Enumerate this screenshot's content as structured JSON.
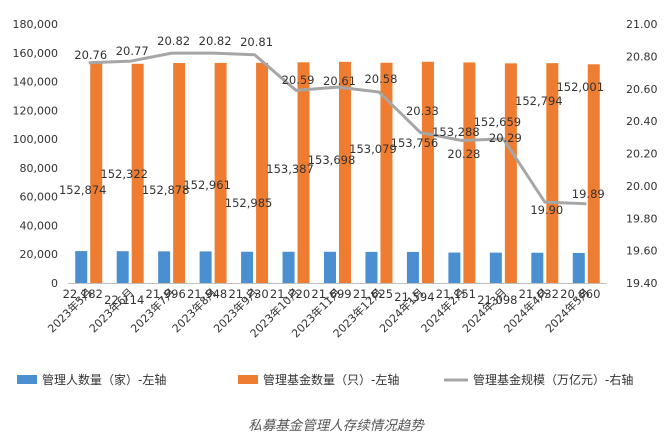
{
  "colors": {
    "managers": "#4a8fd0",
    "funds": "#ee7d31",
    "scale": "#a6a6a6"
  },
  "caption": "私募基金管理人存续情况趋势",
  "chart_data": {
    "type": "bar",
    "title": "",
    "categories": [
      "2023年5月",
      "2023年6月",
      "2023年7月",
      "2023年8月",
      "2023年9月",
      "2023年10月",
      "2023年11月",
      "2023年12月",
      "2024年1月",
      "2024年2月",
      "2024年3月",
      "2024年4月",
      "2024年5月"
    ],
    "left_axis": {
      "ylim": [
        0,
        180000
      ],
      "ticks": [
        "0",
        "20,000",
        "40,000",
        "60,000",
        "80,000",
        "100,000",
        "120,000",
        "140,000",
        "160,000",
        "180,000"
      ]
    },
    "right_axis": {
      "ylim": [
        19.4,
        21.0
      ],
      "ticks": [
        "19.40",
        "19.60",
        "19.80",
        "20.00",
        "20.20",
        "20.40",
        "20.60",
        "20.80",
        "21.00"
      ]
    },
    "series": [
      {
        "name": "管理人数量（家）-左轴",
        "type": "bar",
        "axis": "left",
        "values": [
          22182,
          22114,
          21996,
          21948,
          21730,
          21720,
          21699,
          21625,
          21594,
          21151,
          21098,
          21032,
          20860
        ],
        "labels": [
          "22,182",
          "22,114",
          "21,996",
          "21,948",
          "21,730",
          "21,720",
          "21,699",
          "21,625",
          "21,594",
          "21,151",
          "21,098",
          "21,032",
          "20,860"
        ]
      },
      {
        "name": "管理基金数量（只）-左轴",
        "type": "bar",
        "axis": "left",
        "values": [
          152874,
          152322,
          152878,
          152961,
          152985,
          153387,
          153698,
          153079,
          153756,
          153288,
          152659,
          152794,
          152001
        ],
        "labels": [
          "152,874",
          "152,322",
          "152,878",
          "152,961",
          "152,985",
          "153,387",
          "153,698",
          "153,079",
          "153,756",
          "153,288",
          "152,659",
          "152,794",
          "152,001"
        ]
      },
      {
        "name": "管理基金规模（万亿元）-右轴",
        "type": "line",
        "axis": "right",
        "values": [
          20.76,
          20.77,
          20.82,
          20.82,
          20.81,
          20.59,
          20.61,
          20.58,
          20.33,
          20.28,
          20.29,
          19.9,
          19.89
        ],
        "labels": [
          "20.76",
          "20.77",
          "20.82",
          "20.82",
          "20.81",
          "20.59",
          "20.61",
          "20.58",
          "20.33",
          "20.28",
          "20.29",
          "19.90",
          "19.89"
        ]
      }
    ],
    "legend": "bottom",
    "grid": false
  }
}
